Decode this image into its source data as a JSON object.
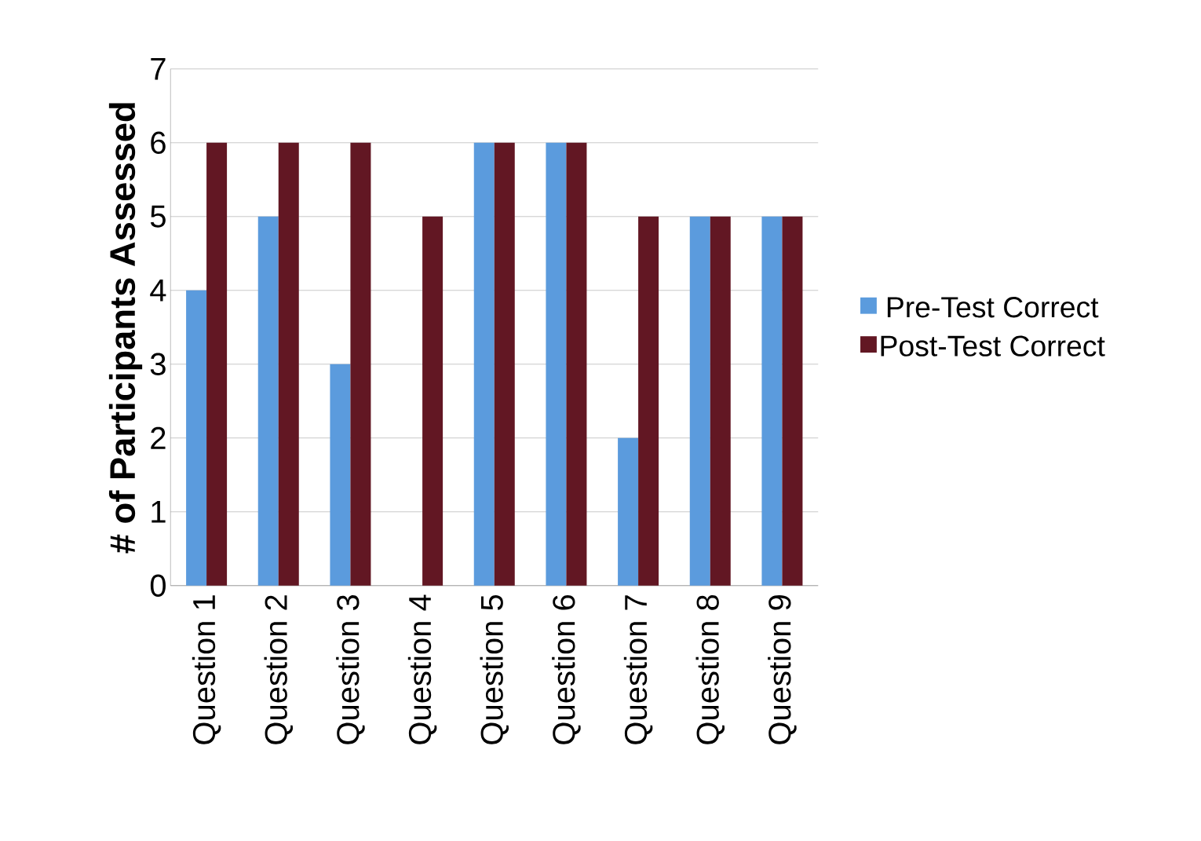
{
  "chart_data": {
    "type": "bar",
    "ylabel": "# of Participants Assessed",
    "categories": [
      "Question 1",
      "Question 2",
      "Question 3",
      "Question 4",
      "Question 5",
      "Question 6",
      "Question 7",
      "Question 8",
      "Question 9"
    ],
    "series": [
      {
        "name": "Pre-Test Correct",
        "color": "#5b9bdd",
        "values": [
          4,
          5,
          3,
          0,
          6,
          6,
          2,
          5,
          5
        ]
      },
      {
        "name": "Post-Test Correct",
        "color": "#621723",
        "values": [
          6,
          6,
          6,
          5,
          6,
          6,
          5,
          5,
          5
        ]
      }
    ],
    "ylim": [
      0,
      7
    ],
    "yticks": [
      0,
      1,
      2,
      3,
      4,
      5,
      6,
      7
    ],
    "grid": "y",
    "legend": "right"
  }
}
